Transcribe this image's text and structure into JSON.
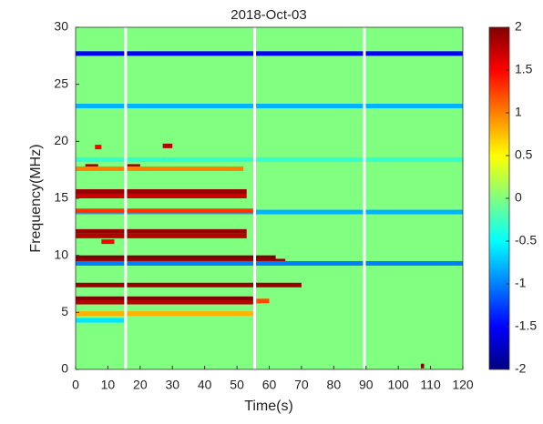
{
  "chart_data": {
    "type": "heatmap",
    "title": "2018-Oct-03",
    "x_label": "Time(s)",
    "y_label": "Frequency(MHz)",
    "xlim": [
      0,
      120
    ],
    "xticks": [
      0,
      10,
      20,
      30,
      40,
      50,
      60,
      70,
      80,
      90,
      100,
      110,
      120
    ],
    "ylim": [
      0,
      30
    ],
    "yticks": [
      0,
      5,
      10,
      15,
      20,
      25,
      30
    ],
    "background_value": 0,
    "clim": [
      -2,
      2
    ],
    "cticks": [
      -2,
      -1.5,
      -1,
      -0.5,
      0,
      0.5,
      1,
      1.5,
      2
    ],
    "colormap": "jet",
    "gaps": [
      15.5,
      55.5,
      89.5
    ],
    "streaks": [
      {
        "freq": 27.7,
        "start": 0,
        "end": 120,
        "value": -1.5
      },
      {
        "freq": 23.1,
        "start": 0,
        "end": 120,
        "value": -0.8
      },
      {
        "freq": 18.4,
        "start": 0,
        "end": 120,
        "value": -0.3
      },
      {
        "freq": 19.6,
        "start": 27,
        "end": 30,
        "value": 1.8
      },
      {
        "freq": 19.5,
        "start": 6,
        "end": 8,
        "value": 1.5
      },
      {
        "freq": 17.8,
        "start": 3,
        "end": 7,
        "value": 1.9
      },
      {
        "freq": 17.8,
        "start": 16,
        "end": 20,
        "value": 1.9
      },
      {
        "freq": 17.6,
        "start": 0,
        "end": 52,
        "value": 1.0
      },
      {
        "freq": 15.6,
        "start": 0,
        "end": 53,
        "value": 1.9
      },
      {
        "freq": 15.2,
        "start": 0,
        "end": 53,
        "value": 1.7
      },
      {
        "freq": 13.8,
        "start": 0,
        "end": 120,
        "value": -0.8
      },
      {
        "freq": 13.9,
        "start": 0,
        "end": 55,
        "value": 1.3
      },
      {
        "freq": 12.1,
        "start": 0,
        "end": 53,
        "value": 1.9
      },
      {
        "freq": 11.7,
        "start": 0,
        "end": 53,
        "value": 1.8
      },
      {
        "freq": 11.2,
        "start": 8,
        "end": 12,
        "value": 1.5
      },
      {
        "freq": 9.8,
        "start": 0,
        "end": 62,
        "value": 2
      },
      {
        "freq": 9.5,
        "start": 0,
        "end": 65,
        "value": 1.9
      },
      {
        "freq": 9.3,
        "start": 0,
        "end": 120,
        "value": -1
      },
      {
        "freq": 7.4,
        "start": 0,
        "end": 70,
        "value": 1.9
      },
      {
        "freq": 6.2,
        "start": 0,
        "end": 55,
        "value": 2
      },
      {
        "freq": 5.9,
        "start": 0,
        "end": 55,
        "value": 1.8
      },
      {
        "freq": 6.0,
        "start": 56,
        "end": 60,
        "value": 1.2
      },
      {
        "freq": 4.9,
        "start": 0,
        "end": 55,
        "value": 0.8
      },
      {
        "freq": 4.3,
        "start": 0,
        "end": 15,
        "value": -0.6
      },
      {
        "freq": 0.3,
        "start": 107,
        "end": 108,
        "value": 2
      }
    ]
  }
}
